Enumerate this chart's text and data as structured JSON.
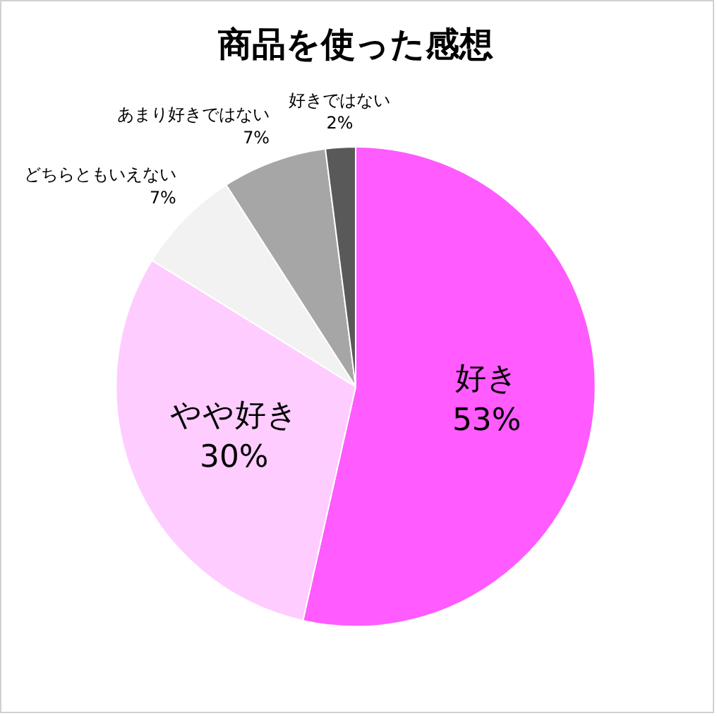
{
  "chart_data": {
    "type": "pie",
    "title": "商品を使った感想",
    "categories": [
      "好き",
      "やや好き",
      "どちらともいえない",
      "あまり好きではない",
      "好きではない"
    ],
    "values": [
      53,
      30,
      7,
      7,
      2
    ],
    "value_labels": [
      "53%",
      "30%",
      "7%",
      "7%",
      "2%"
    ],
    "colors": [
      "#ff5bff",
      "#ffccff",
      "#f2f2f2",
      "#a6a6a6",
      "#595959"
    ],
    "legend": false
  }
}
